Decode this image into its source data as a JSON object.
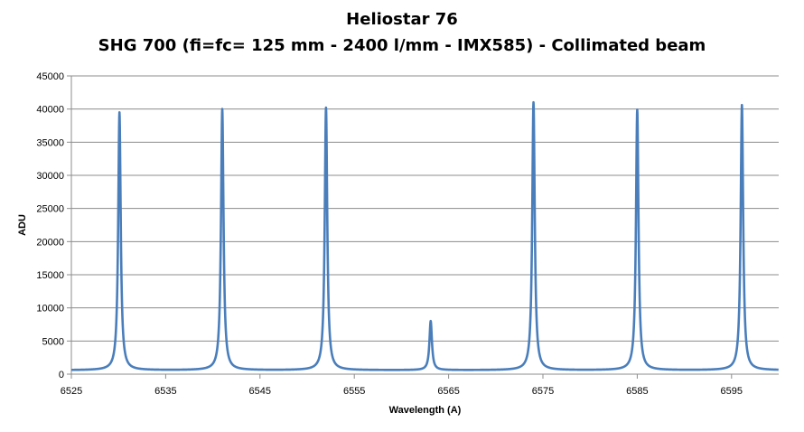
{
  "chart_data": {
    "type": "line",
    "title": "Heliostar 76",
    "subtitle": "SHG 700 (fi=fc= 125 mm - 2400 l/mm - IMX585) - Collimated beam",
    "xlabel": "Wavelength (A)",
    "ylabel": "ADU",
    "xlim": [
      6525,
      6600
    ],
    "ylim": [
      0,
      45000
    ],
    "x_ticks": [
      6525,
      6535,
      6545,
      6555,
      6565,
      6575,
      6585,
      6595
    ],
    "y_ticks": [
      0,
      5000,
      10000,
      15000,
      20000,
      25000,
      30000,
      35000,
      40000,
      45000
    ],
    "grid": "horizontal",
    "legend": "none",
    "line_color": "#4a7ebb",
    "baseline": 600,
    "series": [
      {
        "peaks": [
          {
            "x": 6530.1,
            "y": 39500
          },
          {
            "x": 6541.0,
            "y": 40000
          },
          {
            "x": 6552.0,
            "y": 40200
          },
          {
            "x": 6563.1,
            "y": 8000
          },
          {
            "x": 6574.0,
            "y": 41000
          },
          {
            "x": 6585.0,
            "y": 39900
          },
          {
            "x": 6596.1,
            "y": 40600
          }
        ]
      }
    ]
  }
}
